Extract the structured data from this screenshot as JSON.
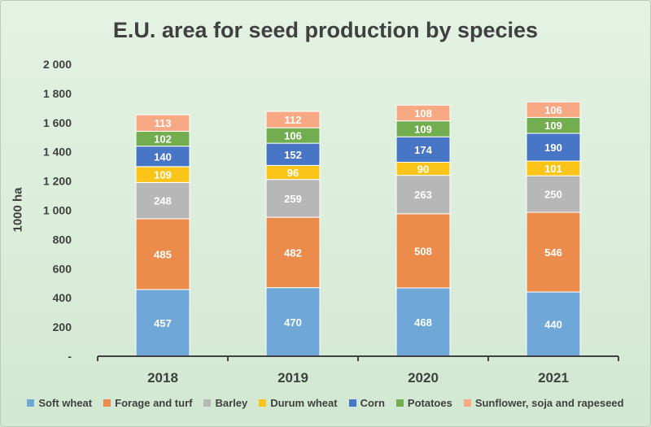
{
  "chart_data": {
    "type": "bar",
    "stacked": true,
    "title": "E.U. area for seed production by species",
    "xlabel": "",
    "ylabel": "1000 ha",
    "categories": [
      "2018",
      "2019",
      "2020",
      "2021"
    ],
    "ylim": [
      0,
      2000
    ],
    "yticks": [
      0,
      200,
      400,
      600,
      800,
      1000,
      1200,
      1400,
      1600,
      1800,
      2000
    ],
    "ytick_labels": [
      "-",
      "200",
      "400",
      "600",
      "800",
      "1 000",
      "1 200",
      "1 400",
      "1 600",
      "1 800",
      "2 000"
    ],
    "legend_position": "bottom",
    "grid": false,
    "series": [
      {
        "name": "Soft wheat",
        "color": "#6fa8d6",
        "values": [
          457,
          470,
          468,
          440
        ]
      },
      {
        "name": "Forage and turf",
        "color": "#ec8c4c",
        "values": [
          485,
          482,
          508,
          546
        ]
      },
      {
        "name": "Barley",
        "color": "#b7b7b7",
        "values": [
          248,
          259,
          263,
          250
        ]
      },
      {
        "name": "Durum wheat",
        "color": "#fac418",
        "values": [
          109,
          96,
          90,
          101
        ]
      },
      {
        "name": "Corn",
        "color": "#4876c6",
        "values": [
          140,
          152,
          174,
          190
        ]
      },
      {
        "name": "Potatoes",
        "color": "#72ae4f",
        "values": [
          102,
          106,
          109,
          109
        ]
      },
      {
        "name": "Sunflower, soja and rapeseed",
        "color": "#f6a983",
        "values": [
          113,
          112,
          108,
          106
        ]
      }
    ]
  }
}
